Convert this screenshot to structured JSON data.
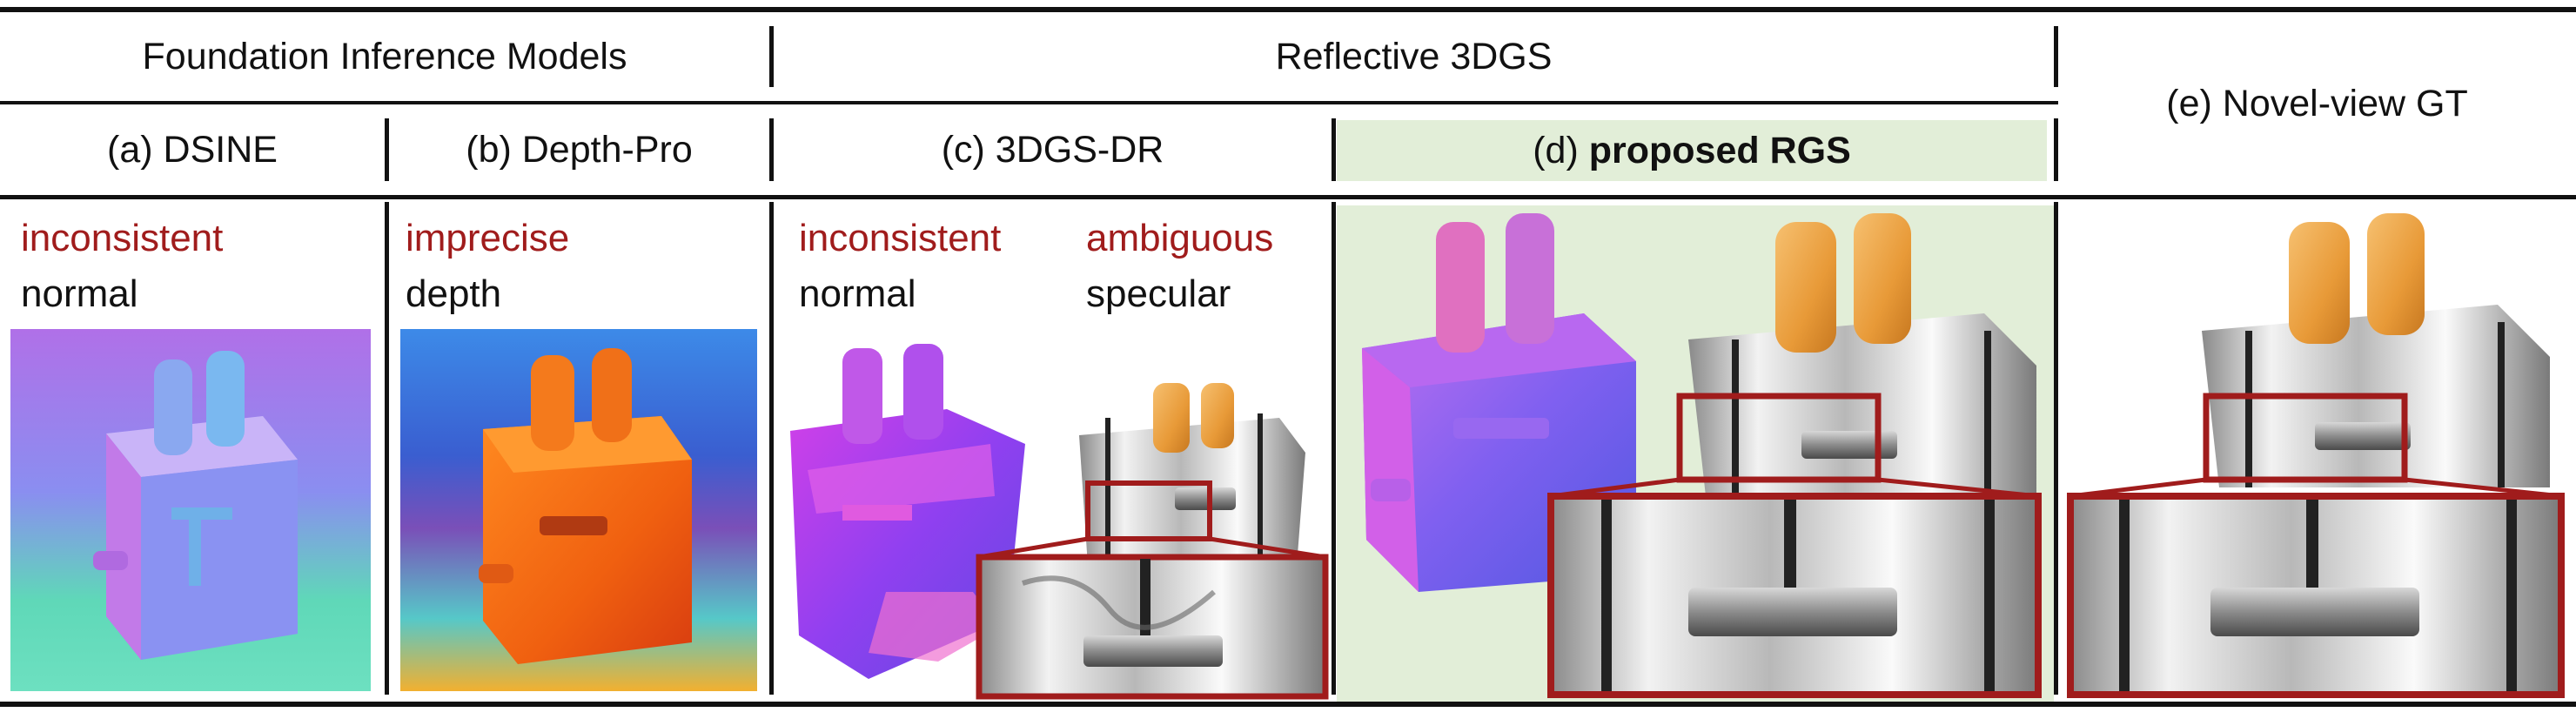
{
  "header": {
    "group_foundation": "Foundation Inference Models",
    "group_reflective": "Reflective 3DGS",
    "col_a": "(a) DSINE",
    "col_b": "(b) Depth-Pro",
    "col_c": "(c) 3DGS-DR",
    "col_d_prefix": "(d) ",
    "col_d_bold": "proposed RGS",
    "col_e": "(e) Novel-view GT"
  },
  "annotations": {
    "a_line1": "inconsistent",
    "a_line2": "normal",
    "b_line1": "imprecise",
    "b_line2": "depth",
    "c1_line1": "inconsistent",
    "c1_line2": "normal",
    "c2_line1": "ambiguous",
    "c2_line2": "specular"
  },
  "colors": {
    "annotation_red": "#a01c1c",
    "zoom_box": "#a01c1c",
    "highlight_bg": "#e2eed8"
  }
}
